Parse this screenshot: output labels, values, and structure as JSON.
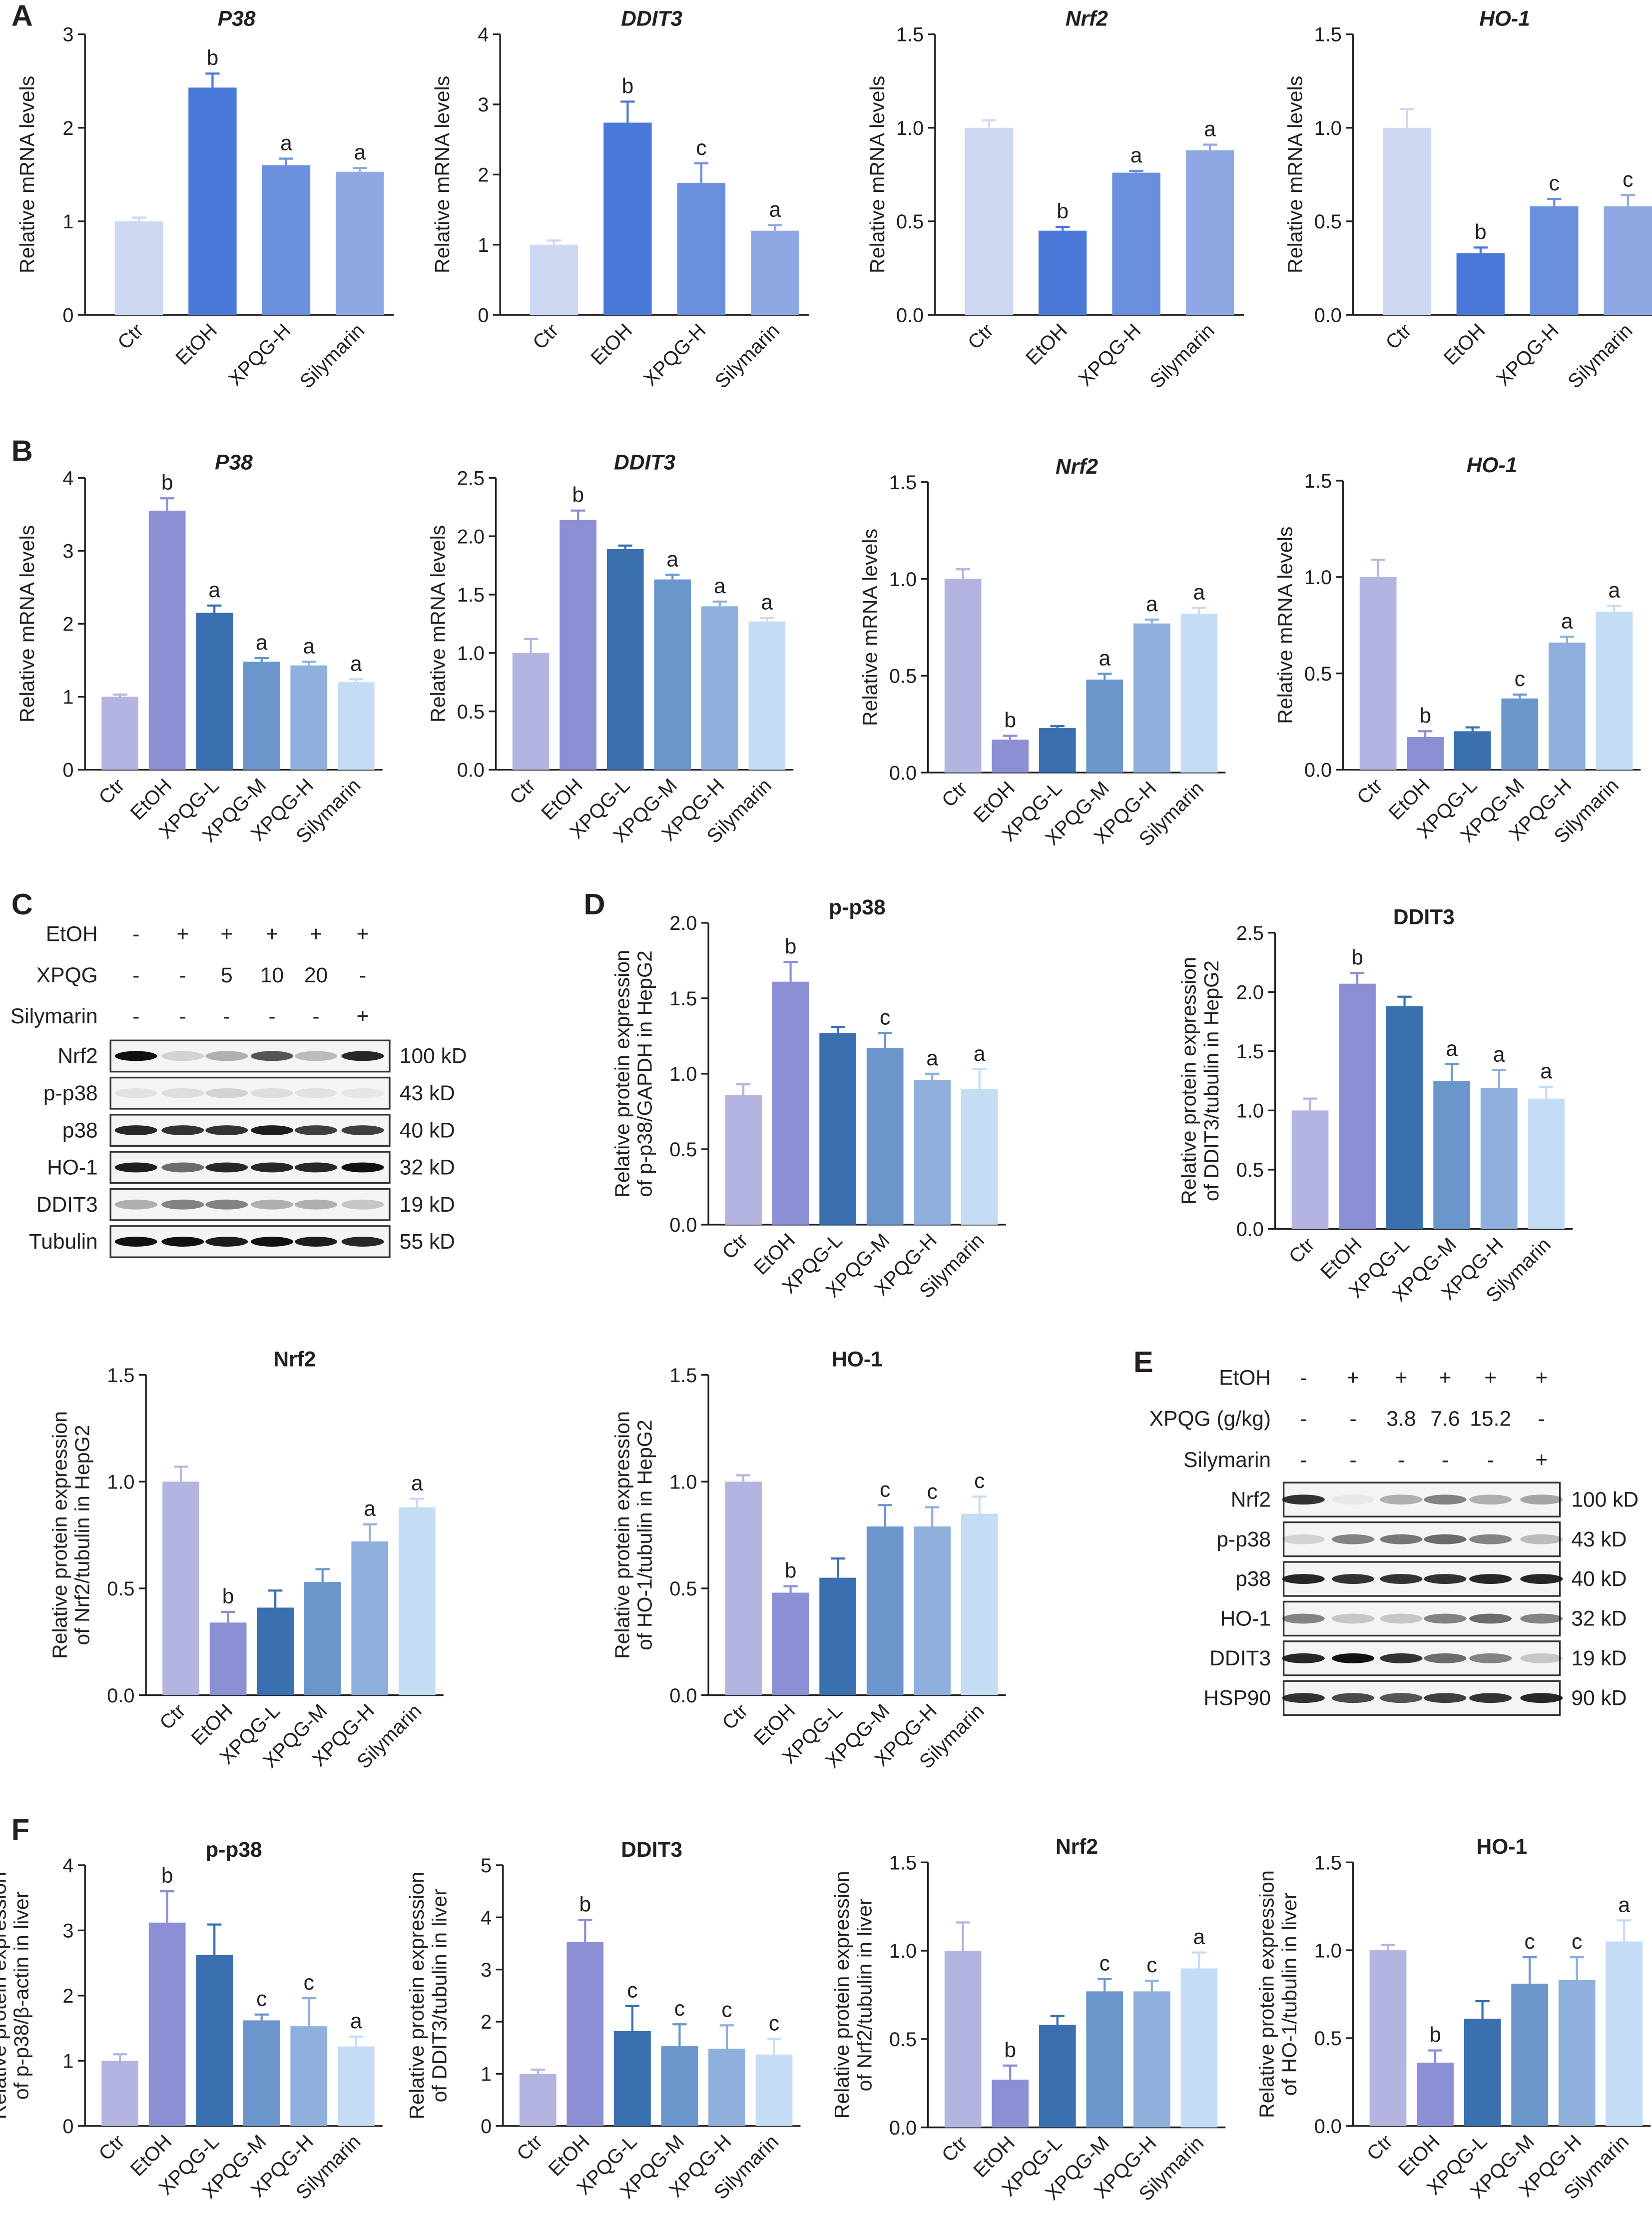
{
  "panel_labels": [
    "A",
    "B",
    "C",
    "D",
    "E",
    "F"
  ],
  "chart_data": [
    {
      "id": "A1",
      "type": "bar",
      "title": "P38",
      "title_italic": true,
      "ylabel": [
        "Relative mRNA levels"
      ],
      "ylim": [
        0,
        3
      ],
      "yticks": [
        "0",
        "1",
        "2",
        "3"
      ],
      "categories": [
        "Ctr",
        "EtOH",
        "XPQG-H",
        "Silymarin"
      ],
      "values": [
        1.0,
        2.43,
        1.6,
        1.53
      ],
      "errors": [
        0.04,
        0.15,
        0.07,
        0.04
      ],
      "sig": [
        "",
        "b",
        "a",
        "a"
      ],
      "colors": [
        "#cdd8f2",
        "#4a78d8",
        "#6a8fdc",
        "#8fa8e3"
      ]
    },
    {
      "id": "A2",
      "type": "bar",
      "title": "DDIT3",
      "title_italic": true,
      "ylabel": [
        "Relative mRNA levels"
      ],
      "ylim": [
        0,
        4
      ],
      "yticks": [
        "0",
        "1",
        "2",
        "3",
        "4"
      ],
      "categories": [
        "Ctr",
        "EtOH",
        "XPQG-H",
        "Silymarin"
      ],
      "values": [
        1.0,
        2.74,
        1.88,
        1.2
      ],
      "errors": [
        0.06,
        0.3,
        0.28,
        0.08
      ],
      "sig": [
        "",
        "b",
        "c",
        "a"
      ],
      "colors": [
        "#cdd8f2",
        "#4a78d8",
        "#6a8fdc",
        "#8fa8e3"
      ]
    },
    {
      "id": "A3",
      "type": "bar",
      "title": "Nrf2",
      "title_italic": true,
      "ylabel": [
        "Relative mRNA levels"
      ],
      "ylim": [
        0,
        1.5
      ],
      "yticks": [
        "0.0",
        "0.5",
        "1.0",
        "1.5"
      ],
      "categories": [
        "Ctr",
        "EtOH",
        "XPQG-H",
        "Silymarin"
      ],
      "values": [
        1.0,
        0.45,
        0.76,
        0.88
      ],
      "errors": [
        0.04,
        0.02,
        0.01,
        0.03
      ],
      "sig": [
        "",
        "b",
        "a",
        "a"
      ],
      "colors": [
        "#cdd8f2",
        "#4a78d8",
        "#6a8fdc",
        "#8fa8e3"
      ]
    },
    {
      "id": "A4",
      "type": "bar",
      "title": "HO-1",
      "title_italic": true,
      "ylabel": [
        "Relative mRNA levels"
      ],
      "ylim": [
        0,
        1.5
      ],
      "yticks": [
        "0.0",
        "0.5",
        "1.0",
        "1.5"
      ],
      "categories": [
        "Ctr",
        "EtOH",
        "XPQG-H",
        "Silymarin"
      ],
      "values": [
        1.0,
        0.33,
        0.58,
        0.58
      ],
      "errors": [
        0.1,
        0.03,
        0.04,
        0.06
      ],
      "sig": [
        "",
        "b",
        "c",
        "c"
      ],
      "colors": [
        "#cdd8f2",
        "#4a78d8",
        "#6a8fdc",
        "#8fa8e3"
      ]
    },
    {
      "id": "B1",
      "type": "bar",
      "title": "P38",
      "title_italic": true,
      "ylabel": [
        "Relative mRNA levels"
      ],
      "ylim": [
        0,
        4
      ],
      "yticks": [
        "0",
        "1",
        "2",
        "3",
        "4"
      ],
      "categories": [
        "Ctr",
        "EtOH",
        "XPQG-L",
        "XPQG-M",
        "XPQG-H",
        "Silymarin"
      ],
      "values": [
        1.0,
        3.55,
        2.15,
        1.48,
        1.43,
        1.2
      ],
      "errors": [
        0.03,
        0.17,
        0.1,
        0.05,
        0.05,
        0.04
      ],
      "sig": [
        "",
        "b",
        "a",
        "a",
        "a",
        "a"
      ],
      "colors": [
        "#b3b5e0",
        "#8b8fd4",
        "#3a6fb0",
        "#6b96cc",
        "#8fb0dc",
        "#c5dcf5"
      ]
    },
    {
      "id": "B2",
      "type": "bar",
      "title": "DDIT3",
      "title_italic": true,
      "ylabel": [
        "Relative mRNA levels"
      ],
      "ylim": [
        0,
        2.5
      ],
      "yticks": [
        "0.0",
        "0.5",
        "1.0",
        "1.5",
        "2.0",
        "2.5"
      ],
      "categories": [
        "Ctr",
        "EtOH",
        "XPQG-L",
        "XPQG-M",
        "XPQG-H",
        "Silymarin"
      ],
      "values": [
        1.0,
        2.14,
        1.89,
        1.63,
        1.4,
        1.27
      ],
      "errors": [
        0.12,
        0.08,
        0.03,
        0.04,
        0.04,
        0.03
      ],
      "sig": [
        "",
        "b",
        "",
        "a",
        "a",
        "a"
      ],
      "colors": [
        "#b3b5e0",
        "#8b8fd4",
        "#3a6fb0",
        "#6b96cc",
        "#8fb0dc",
        "#c5dcf5"
      ]
    },
    {
      "id": "B3",
      "type": "bar",
      "title": "Nrf2",
      "title_italic": true,
      "ylabel": [
        "Relative mRNA levels"
      ],
      "ylim": [
        0,
        1.5
      ],
      "yticks": [
        "0.0",
        "0.5",
        "1.0",
        "1.5"
      ],
      "categories": [
        "Ctr",
        "EtOH",
        "XPQG-L",
        "XPQG-M",
        "XPQG-H",
        "Silymarin"
      ],
      "values": [
        1.0,
        0.17,
        0.23,
        0.48,
        0.77,
        0.82
      ],
      "errors": [
        0.05,
        0.02,
        0.01,
        0.03,
        0.02,
        0.03
      ],
      "sig": [
        "",
        "b",
        "",
        "a",
        "a",
        "a"
      ],
      "colors": [
        "#b3b5e0",
        "#8b8fd4",
        "#3a6fb0",
        "#6b96cc",
        "#8fb0dc",
        "#c5dcf5"
      ]
    },
    {
      "id": "B4",
      "type": "bar",
      "title": "HO-1",
      "title_italic": true,
      "ylabel": [
        "Relative mRNA levels"
      ],
      "ylim": [
        0,
        1.5
      ],
      "yticks": [
        "0.0",
        "0.5",
        "1.0",
        "1.5"
      ],
      "categories": [
        "Ctr",
        "EtOH",
        "XPQG-L",
        "XPQG-M",
        "XPQG-H",
        "Silymarin"
      ],
      "values": [
        1.0,
        0.17,
        0.2,
        0.37,
        0.66,
        0.82
      ],
      "errors": [
        0.09,
        0.03,
        0.02,
        0.02,
        0.03,
        0.03
      ],
      "sig": [
        "",
        "b",
        "",
        "c",
        "a",
        "a"
      ],
      "colors": [
        "#b3b5e0",
        "#8b8fd4",
        "#3a6fb0",
        "#6b96cc",
        "#8fb0dc",
        "#c5dcf5"
      ]
    },
    {
      "id": "D1",
      "type": "bar",
      "title": "p-p38",
      "title_italic": false,
      "ylabel": [
        "Relative protein expression",
        "of p-p38/GAPDH in HepG2"
      ],
      "ylim": [
        0,
        2.0
      ],
      "yticks": [
        "0.0",
        "0.5",
        "1.0",
        "1.5",
        "2.0"
      ],
      "categories": [
        "Ctr",
        "EtOH",
        "XPQG-L",
        "XPQG-M",
        "XPQG-H",
        "Silymarin"
      ],
      "values": [
        0.86,
        1.61,
        1.27,
        1.17,
        0.96,
        0.9
      ],
      "errors": [
        0.07,
        0.13,
        0.04,
        0.1,
        0.04,
        0.13
      ],
      "sig": [
        "",
        "b",
        "",
        "c",
        "a",
        "a"
      ],
      "colors": [
        "#b3b5e0",
        "#8b8fd4",
        "#3a6fb0",
        "#6b96cc",
        "#8fb0dc",
        "#c5dcf5"
      ]
    },
    {
      "id": "D2",
      "type": "bar",
      "title": "DDIT3",
      "title_italic": false,
      "ylabel": [
        "Relative protein expression",
        "of DDIT3/tubulin in HepG2"
      ],
      "ylim": [
        0,
        2.5
      ],
      "yticks": [
        "0.0",
        "0.5",
        "1.0",
        "1.5",
        "2.0",
        "2.5"
      ],
      "categories": [
        "Ctr",
        "EtOH",
        "XPQG-L",
        "XPQG-M",
        "XPQG-H",
        "Silymarin"
      ],
      "values": [
        1.0,
        2.07,
        1.88,
        1.25,
        1.19,
        1.1
      ],
      "errors": [
        0.1,
        0.09,
        0.08,
        0.14,
        0.15,
        0.1
      ],
      "sig": [
        "",
        "b",
        "",
        "a",
        "a",
        "a"
      ],
      "colors": [
        "#b3b5e0",
        "#8b8fd4",
        "#3a6fb0",
        "#6b96cc",
        "#8fb0dc",
        "#c5dcf5"
      ]
    },
    {
      "id": "D3",
      "type": "bar",
      "title": "Nrf2",
      "title_italic": false,
      "ylabel": [
        "Relative protein expression",
        "of Nrf2/tubulin in HepG2"
      ],
      "ylim": [
        0,
        1.5
      ],
      "yticks": [
        "0.0",
        "0.5",
        "1.0",
        "1.5"
      ],
      "categories": [
        "Ctr",
        "EtOH",
        "XPQG-L",
        "XPQG-M",
        "XPQG-H",
        "Silymarin"
      ],
      "values": [
        1.0,
        0.34,
        0.41,
        0.53,
        0.72,
        0.88
      ],
      "errors": [
        0.07,
        0.05,
        0.08,
        0.06,
        0.08,
        0.04
      ],
      "sig": [
        "",
        "b",
        "",
        "",
        "a",
        "a"
      ],
      "colors": [
        "#b3b5e0",
        "#8b8fd4",
        "#3a6fb0",
        "#6b96cc",
        "#8fb0dc",
        "#c5dcf5"
      ]
    },
    {
      "id": "D4",
      "type": "bar",
      "title": "HO-1",
      "title_italic": false,
      "ylabel": [
        "Relative protein expression",
        "of HO-1/tubulin in HepG2"
      ],
      "ylim": [
        0,
        1.5
      ],
      "yticks": [
        "0.0",
        "0.5",
        "1.0",
        "1.5"
      ],
      "categories": [
        "Ctr",
        "EtOH",
        "XPQG-L",
        "XPQG-M",
        "XPQG-H",
        "Silymarin"
      ],
      "values": [
        1.0,
        0.48,
        0.55,
        0.79,
        0.79,
        0.85
      ],
      "errors": [
        0.03,
        0.03,
        0.09,
        0.1,
        0.09,
        0.08
      ],
      "sig": [
        "",
        "b",
        "",
        "c",
        "c",
        "c"
      ],
      "colors": [
        "#b3b5e0",
        "#8b8fd4",
        "#3a6fb0",
        "#6b96cc",
        "#8fb0dc",
        "#c5dcf5"
      ]
    },
    {
      "id": "F1",
      "type": "bar",
      "title": "p-p38",
      "title_italic": false,
      "ylabel": [
        "Relative protein expression",
        "of p-p38/β-actin in liver"
      ],
      "ylim": [
        0,
        4
      ],
      "yticks": [
        "0",
        "1",
        "2",
        "3",
        "4"
      ],
      "categories": [
        "Ctr",
        "EtOH",
        "XPQG-L",
        "XPQG-M",
        "XPQG-H",
        "Silymarin"
      ],
      "values": [
        1.0,
        3.12,
        2.62,
        1.62,
        1.53,
        1.22
      ],
      "errors": [
        0.1,
        0.48,
        0.47,
        0.09,
        0.43,
        0.15
      ],
      "sig": [
        "",
        "b",
        "",
        "c",
        "c",
        "a"
      ],
      "colors": [
        "#b3b5e0",
        "#8b8fd4",
        "#3a6fb0",
        "#6b96cc",
        "#8fb0dc",
        "#c5dcf5"
      ]
    },
    {
      "id": "F2",
      "type": "bar",
      "title": "DDIT3",
      "title_italic": false,
      "ylabel": [
        "Relative protein expression",
        "of DDIT3/tubulin in liver"
      ],
      "ylim": [
        0,
        5
      ],
      "yticks": [
        "0",
        "1",
        "2",
        "3",
        "4",
        "5"
      ],
      "categories": [
        "Ctr",
        "EtOH",
        "XPQG-L",
        "XPQG-M",
        "XPQG-H",
        "Silymarin"
      ],
      "values": [
        1.0,
        3.53,
        1.82,
        1.53,
        1.48,
        1.37
      ],
      "errors": [
        0.08,
        0.42,
        0.48,
        0.42,
        0.45,
        0.3
      ],
      "sig": [
        "",
        "b",
        "c",
        "c",
        "c",
        "c"
      ],
      "colors": [
        "#b3b5e0",
        "#8b8fd4",
        "#3a6fb0",
        "#6b96cc",
        "#8fb0dc",
        "#c5dcf5"
      ]
    },
    {
      "id": "F3",
      "type": "bar",
      "title": "Nrf2",
      "title_italic": false,
      "ylabel": [
        "Relative protein expression",
        "of Nrf2/tubulin in liver"
      ],
      "ylim": [
        0,
        1.5
      ],
      "yticks": [
        "0.0",
        "0.5",
        "1.0",
        "1.5"
      ],
      "categories": [
        "Ctr",
        "EtOH",
        "XPQG-L",
        "XPQG-M",
        "XPQG-H",
        "Silymarin"
      ],
      "values": [
        1.0,
        0.27,
        0.58,
        0.77,
        0.77,
        0.9
      ],
      "errors": [
        0.16,
        0.08,
        0.05,
        0.07,
        0.06,
        0.09
      ],
      "sig": [
        "",
        "b",
        "",
        "c",
        "c",
        "a"
      ],
      "colors": [
        "#b3b5e0",
        "#8b8fd4",
        "#3a6fb0",
        "#6b96cc",
        "#8fb0dc",
        "#c5dcf5"
      ]
    },
    {
      "id": "F4",
      "type": "bar",
      "title": "HO-1",
      "title_italic": false,
      "ylabel": [
        "Relative protein expression",
        "of HO-1/tubulin in liver"
      ],
      "ylim": [
        0,
        1.5
      ],
      "yticks": [
        "0.0",
        "0.5",
        "1.0",
        "1.5"
      ],
      "categories": [
        "Ctr",
        "EtOH",
        "XPQG-L",
        "XPQG-M",
        "XPQG-H",
        "Silymarin"
      ],
      "values": [
        1.0,
        0.36,
        0.61,
        0.81,
        0.83,
        1.05
      ],
      "errors": [
        0.03,
        0.07,
        0.1,
        0.15,
        0.13,
        0.12
      ],
      "sig": [
        "",
        "b",
        "",
        "c",
        "c",
        "a"
      ],
      "colors": [
        "#b3b5e0",
        "#8b8fd4",
        "#3a6fb0",
        "#6b96cc",
        "#8fb0dc",
        "#c5dcf5"
      ]
    }
  ],
  "blots": [
    {
      "id": "C",
      "treatments": [
        {
          "label": "EtOH",
          "cells": [
            "-",
            "+",
            "+",
            "+",
            "+",
            "+"
          ]
        },
        {
          "label": "XPQG",
          "cells": [
            "-",
            "-",
            "5",
            "10",
            "20",
            "-"
          ]
        },
        {
          "label": "Silymarin",
          "cells": [
            "-",
            "-",
            "-",
            "-",
            "-",
            "+"
          ]
        }
      ],
      "rows": [
        {
          "label": "Nrf2",
          "kd": "100 kD"
        },
        {
          "label": "p-p38",
          "kd": "43 kD"
        },
        {
          "label": "p38",
          "kd": "40 kD"
        },
        {
          "label": "HO-1",
          "kd": "32 kD"
        },
        {
          "label": "DDIT3",
          "kd": "19 kD"
        },
        {
          "label": "Tubulin",
          "kd": "55 kD"
        }
      ]
    },
    {
      "id": "E",
      "treatments": [
        {
          "label": "EtOH",
          "cells": [
            "-",
            "+",
            "+",
            "+",
            "+",
            "+"
          ]
        },
        {
          "label": "XPQG (g/kg)",
          "cells": [
            "-",
            "-",
            "3.8",
            "7.6",
            "15.2",
            "-"
          ]
        },
        {
          "label": "Silymarin",
          "cells": [
            "-",
            "-",
            "-",
            "-",
            "-",
            "+"
          ]
        }
      ],
      "rows": [
        {
          "label": "Nrf2",
          "kd": "100 kD"
        },
        {
          "label": "p-p38",
          "kd": "43 kD"
        },
        {
          "label": "p38",
          "kd": "40 kD"
        },
        {
          "label": "HO-1",
          "kd": "32 kD"
        },
        {
          "label": "DDIT3",
          "kd": "19 kD"
        },
        {
          "label": "HSP90",
          "kd": "90 kD"
        }
      ]
    }
  ]
}
